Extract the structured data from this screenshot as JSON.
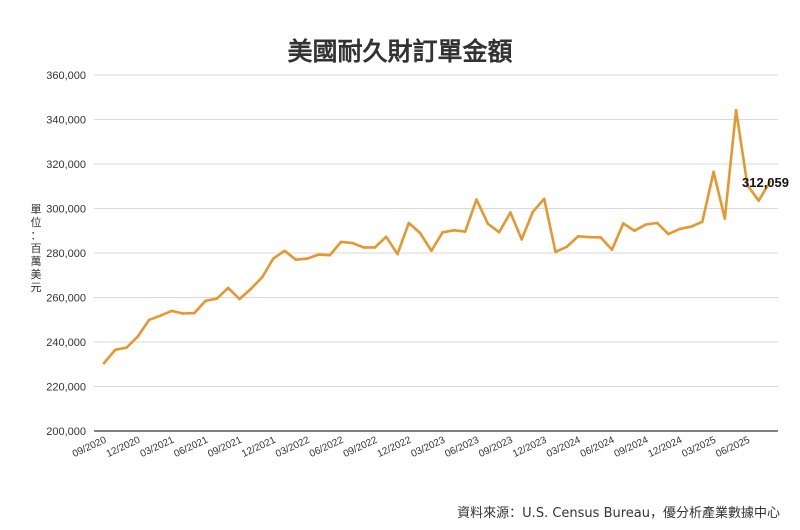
{
  "chart_data": {
    "type": "line",
    "title": "美國耐久財訂單金額",
    "ylabel": "單位：百萬美元",
    "xlabel": "",
    "ylim": [
      200000,
      360000
    ],
    "yticks": [
      200000,
      220000,
      240000,
      260000,
      280000,
      300000,
      320000,
      340000,
      360000
    ],
    "ytick_labels": [
      "200,000",
      "220,000",
      "240,000",
      "260,000",
      "280,000",
      "300,000",
      "320,000",
      "340,000",
      "360,000"
    ],
    "xtick_labels": [
      "09/2020",
      "12/2020",
      "03/2021",
      "06/2021",
      "09/2021",
      "12/2021",
      "03/2022",
      "06/2022",
      "09/2022",
      "12/2022",
      "03/2023",
      "06/2023",
      "09/2023",
      "12/2023",
      "03/2024",
      "06/2024",
      "09/2024",
      "12/2024",
      "03/2025",
      "06/2025"
    ],
    "grid": true,
    "line_color": "#e8972e",
    "x": [
      "09/2020",
      "10/2020",
      "11/2020",
      "12/2020",
      "01/2021",
      "02/2021",
      "03/2021",
      "04/2021",
      "05/2021",
      "06/2021",
      "07/2021",
      "08/2021",
      "09/2021",
      "10/2021",
      "11/2021",
      "12/2021",
      "01/2022",
      "02/2022",
      "03/2022",
      "04/2022",
      "05/2022",
      "06/2022",
      "07/2022",
      "08/2022",
      "09/2022",
      "10/2022",
      "11/2022",
      "12/2022",
      "01/2023",
      "02/2023",
      "03/2023",
      "04/2023",
      "05/2023",
      "06/2023",
      "07/2023",
      "08/2023",
      "09/2023",
      "10/2023",
      "11/2023",
      "12/2023",
      "01/2024",
      "02/2024",
      "03/2024",
      "04/2024",
      "05/2024",
      "06/2024",
      "07/2024",
      "08/2024",
      "09/2024",
      "10/2024",
      "11/2024",
      "12/2024",
      "01/2025",
      "02/2025",
      "03/2025",
      "04/2025",
      "05/2025",
      "06/2025",
      "07/2025",
      "08/2025"
    ],
    "series": [
      {
        "values": [
          230500,
          236500,
          237500,
          242500,
          250000,
          251800,
          254000,
          252800,
          253000,
          258500,
          259500,
          264300,
          259300,
          263800,
          269000,
          277500,
          281000,
          277000,
          277500,
          279300,
          279000,
          285000,
          284500,
          282500,
          282500,
          287300,
          279500,
          293500,
          289000,
          281000,
          289300,
          290200,
          289600,
          304000,
          293200,
          289300,
          298200,
          286100,
          298500,
          304300,
          280500,
          282800,
          287500,
          287100,
          287000,
          281500,
          293300,
          290000,
          292800,
          293500,
          288500,
          290800,
          291800,
          294000,
          316500,
          295500,
          344200,
          310500,
          303500,
          312059
        ]
      }
    ],
    "annotation": {
      "text": "312,059"
    },
    "source": "資料來源：U.S. Census Bureau，優分析產業數據中心"
  }
}
